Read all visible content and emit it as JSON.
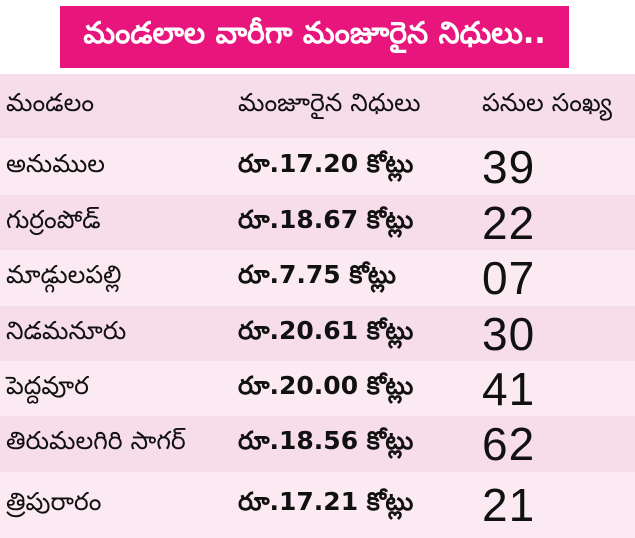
{
  "colors": {
    "banner_bg": "#e8167c",
    "table_bg": "#f7dde9",
    "alt_row_bg": "#fbeaf2"
  },
  "title": "మండలాల వారీగా మంజూరైన నిధులు..",
  "headers": {
    "mandal": "మండలం",
    "funds": "మంజూరైన నిధులు",
    "works": "పనుల సంఖ్య"
  },
  "rows": [
    {
      "mandal": "అనుముల",
      "funds": "రూ.17.20 కోట్లు",
      "works": "39"
    },
    {
      "mandal": "గుర్రంపోడ్",
      "funds": "రూ.18.67 కోట్లు",
      "works": "22"
    },
    {
      "mandal": "మాడ్గులపల్లి",
      "funds": "రూ.7.75 కోట్లు",
      "works": "07"
    },
    {
      "mandal": "నిడమనూరు",
      "funds": "రూ.20.61 కోట్లు",
      "works": "30"
    },
    {
      "mandal": "పెద్దవూర",
      "funds": "రూ.20.00 కోట్లు",
      "works": "41"
    },
    {
      "mandal": "తిరుమలగిరి సాగర్",
      "funds": "రూ.18.56 కోట్లు",
      "works": "62"
    },
    {
      "mandal": "త్రిపురారం",
      "funds": "రూ.17.21 కోట్లు",
      "works": "21"
    }
  ]
}
